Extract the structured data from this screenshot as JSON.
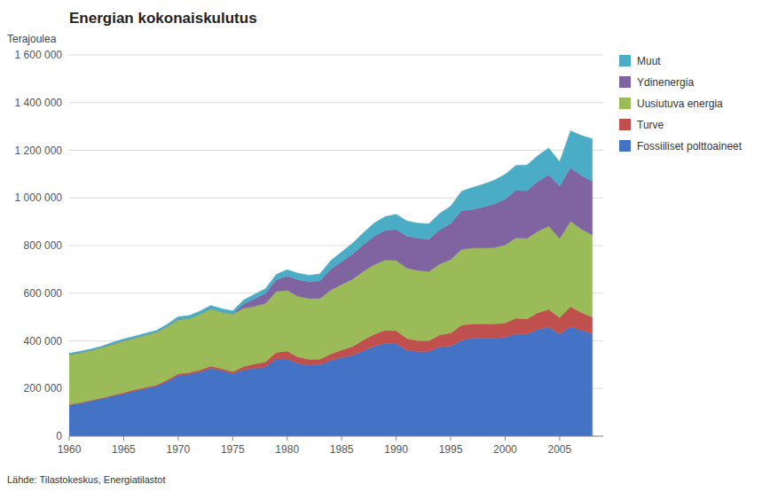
{
  "chart_data": {
    "type": "area",
    "stacked": true,
    "title": "Energian kokonaiskulutus",
    "ylabel": "Terajoulea",
    "source": "Lähde: Tilastokeskus, Energiatilastot",
    "x": [
      1960,
      1961,
      1962,
      1963,
      1964,
      1965,
      1966,
      1967,
      1968,
      1969,
      1970,
      1971,
      1972,
      1973,
      1974,
      1975,
      1976,
      1977,
      1978,
      1979,
      1980,
      1981,
      1982,
      1983,
      1984,
      1985,
      1986,
      1987,
      1988,
      1989,
      1990,
      1991,
      1992,
      1993,
      1994,
      1995,
      1996,
      1997,
      1998,
      1999,
      2000,
      2001,
      2002,
      2003,
      2004,
      2005,
      2006,
      2007,
      2008
    ],
    "series": [
      {
        "name": "Fossiiliset polttoaineet",
        "color": "#4472C4",
        "values": [
          130000,
          138000,
          148000,
          158000,
          168000,
          178000,
          190000,
          200000,
          210000,
          230000,
          255000,
          260000,
          270000,
          285000,
          275000,
          262000,
          278000,
          285000,
          290000,
          325000,
          325000,
          305000,
          298000,
          300000,
          318000,
          330000,
          340000,
          358000,
          378000,
          390000,
          388000,
          360000,
          355000,
          355000,
          375000,
          378000,
          402000,
          412000,
          412000,
          412000,
          415000,
          430000,
          428000,
          448000,
          458000,
          428000,
          460000,
          445000,
          430000
        ]
      },
      {
        "name": "Turve",
        "color": "#C0504D",
        "values": [
          3000,
          3000,
          3000,
          3000,
          4000,
          5000,
          5000,
          5000,
          5000,
          6000,
          7000,
          7000,
          8000,
          9000,
          9000,
          9000,
          14000,
          18000,
          22000,
          27000,
          32000,
          27000,
          25000,
          23000,
          27000,
          32000,
          37000,
          46000,
          50000,
          55000,
          55000,
          50000,
          46000,
          46000,
          50000,
          55000,
          64000,
          60000,
          60000,
          60000,
          60000,
          65000,
          64000,
          70000,
          74000,
          70000,
          84000,
          74000,
          70000
        ]
      },
      {
        "name": "Uusiutuva energia",
        "color": "#9BBB59",
        "values": [
          210000,
          210000,
          210000,
          212000,
          215000,
          218000,
          218000,
          220000,
          222000,
          225000,
          228000,
          228000,
          235000,
          242000,
          238000,
          242000,
          245000,
          242000,
          245000,
          255000,
          255000,
          255000,
          255000,
          255000,
          268000,
          275000,
          282000,
          288000,
          292000,
          295000,
          295000,
          295000,
          295000,
          290000,
          298000,
          308000,
          318000,
          318000,
          318000,
          320000,
          328000,
          338000,
          338000,
          342000,
          350000,
          332000,
          358000,
          350000,
          345000
        ]
      },
      {
        "name": "Ydinenergia",
        "color": "#8064A2",
        "values": [
          0,
          0,
          0,
          0,
          0,
          0,
          0,
          0,
          0,
          0,
          0,
          0,
          0,
          0,
          0,
          0,
          18000,
          32000,
          42000,
          50000,
          60000,
          70000,
          70000,
          74000,
          88000,
          96000,
          106000,
          112000,
          120000,
          124000,
          130000,
          135000,
          135000,
          135000,
          144000,
          152000,
          162000,
          162000,
          172000,
          182000,
          192000,
          200000,
          200000,
          210000,
          215000,
          220000,
          225000,
          225000,
          225000
        ]
      },
      {
        "name": "Muut",
        "color": "#4BACC6",
        "values": [
          5000,
          5000,
          5000,
          5000,
          7000,
          7000,
          7000,
          7000,
          7000,
          9000,
          11000,
          11000,
          12000,
          13000,
          13000,
          13000,
          16000,
          18000,
          20000,
          22000,
          27000,
          27000,
          27000,
          29000,
          36000,
          40000,
          45000,
          50000,
          55000,
          58000,
          63000,
          63000,
          63000,
          65000,
          68000,
          72000,
          82000,
          92000,
          96000,
          100000,
          104000,
          104000,
          108000,
          108000,
          112000,
          102000,
          155000,
          168000,
          178000
        ]
      }
    ],
    "xlim": [
      1960,
      2009
    ],
    "xticks": [
      1960,
      1965,
      1970,
      1975,
      1980,
      1985,
      1990,
      1995,
      2000,
      2005
    ],
    "ylim": [
      0,
      1600000
    ],
    "yticks": [
      0,
      {
        "value": 200000,
        "label": "200 000"
      },
      {
        "value": 400000,
        "label": "400 000"
      },
      {
        "value": 600000,
        "label": "600 000"
      },
      {
        "value": 800000,
        "label": "800 000"
      },
      {
        "value": 1000000,
        "label": "1 000 000"
      },
      {
        "value": 1200000,
        "label": "1 200 000"
      },
      {
        "value": 1400000,
        "label": "1 400 000"
      },
      {
        "value": 1600000,
        "label": "1 600 000"
      }
    ],
    "grid": "y",
    "legend": "right"
  }
}
